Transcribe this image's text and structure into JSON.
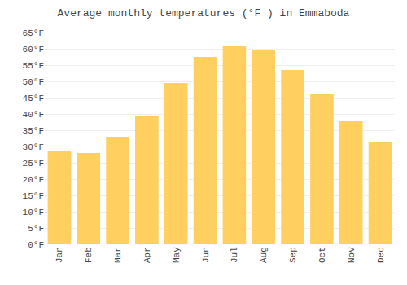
{
  "chart_data": {
    "type": "bar",
    "title": "Average monthly temperatures (°F ) in Emmaboda",
    "categories": [
      "Jan",
      "Feb",
      "Mar",
      "Apr",
      "May",
      "Jun",
      "Jul",
      "Aug",
      "Sep",
      "Oct",
      "Nov",
      "Dec"
    ],
    "values": [
      28.5,
      28.0,
      33.0,
      39.5,
      49.5,
      57.5,
      61.0,
      59.5,
      53.5,
      46.0,
      38.0,
      31.5
    ],
    "color": "#FFD060",
    "ylim": [
      0,
      65
    ],
    "yticks": [
      {
        "value": 0,
        "label": "0°F"
      },
      {
        "value": 5,
        "label": "5°F"
      },
      {
        "value": 10,
        "label": "10°F"
      },
      {
        "value": 15,
        "label": "15°F"
      },
      {
        "value": 20,
        "label": "20°F"
      },
      {
        "value": 25,
        "label": "25°F"
      },
      {
        "value": 30,
        "label": "30°F"
      },
      {
        "value": 35,
        "label": "35°F"
      },
      {
        "value": 40,
        "label": "40°F"
      },
      {
        "value": 45,
        "label": "45°F"
      },
      {
        "value": 50,
        "label": "50°F"
      },
      {
        "value": 55,
        "label": "55°F"
      },
      {
        "value": 60,
        "label": "60°F"
      },
      {
        "value": 65,
        "label": "65°F"
      }
    ],
    "grid": true
  }
}
